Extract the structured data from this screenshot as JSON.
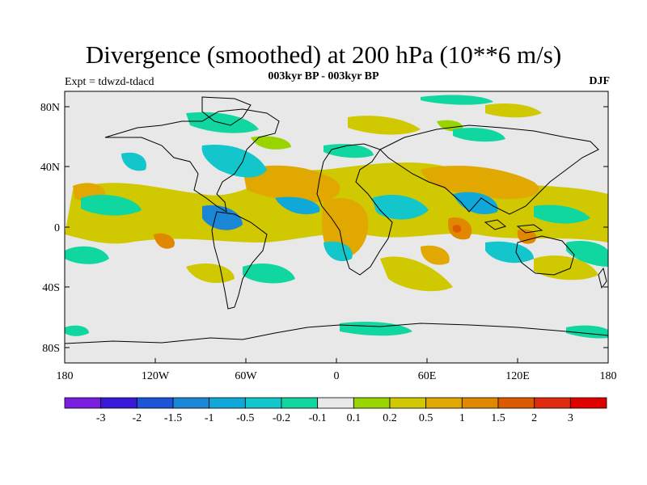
{
  "title": "Divergence (smoothed) at 200 hPa (10**6 m/s)",
  "expt": "Expt = tdwzd-tdacd",
  "subtitle": "003kyr BP - 003kyr BP",
  "season": "DJF",
  "map": {
    "lat_labels": [
      "80N",
      "40N",
      "0",
      "40S",
      "80S"
    ],
    "lon_labels": [
      "180",
      "120W",
      "60W",
      "0",
      "60E",
      "120E",
      "180"
    ],
    "background_color": "#e8e8e8"
  },
  "colorbar": {
    "labels": [
      "-3",
      "-2",
      "-1.5",
      "-1",
      "-0.5",
      "-0.2",
      "-0.1",
      "0.1",
      "0.2",
      "0.5",
      "1",
      "1.5",
      "2",
      "3"
    ],
    "colors": [
      "#7a1fe0",
      "#3a1ad8",
      "#1c55d8",
      "#1b86d6",
      "#10a8d8",
      "#12c6cc",
      "#10d6a0",
      "#e8e8e8",
      "#9ad400",
      "#d0c800",
      "#e0a800",
      "#e08800",
      "#dc5a00",
      "#e02a10",
      "#e00000"
    ]
  }
}
